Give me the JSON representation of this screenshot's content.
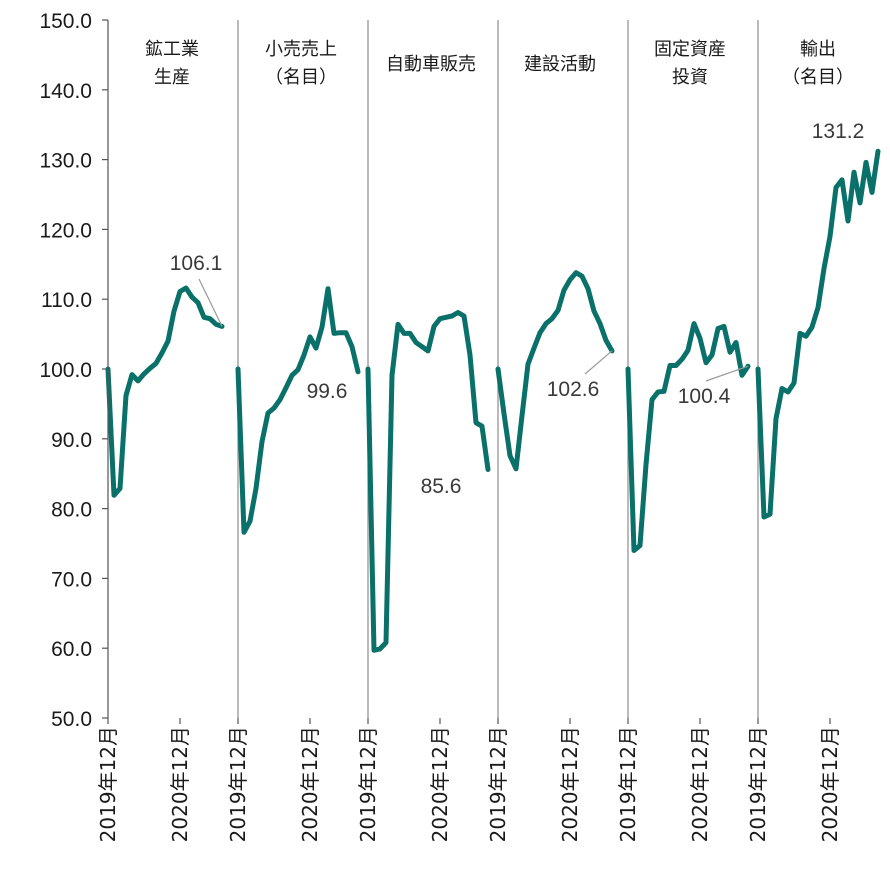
{
  "chart_data": {
    "type": "line",
    "ylim": [
      50,
      150
    ],
    "y_ticks": [
      "150.0",
      "140.0",
      "130.0",
      "120.0",
      "110.0",
      "100.0",
      "90.0",
      "80.0",
      "70.0",
      "60.0",
      "50.0"
    ],
    "x_tick_labels": [
      "2019年12月",
      "2020年12月"
    ],
    "grid": false,
    "line_color": "#0a706a",
    "panels": [
      {
        "title": [
          "鉱工業",
          "生産"
        ],
        "end_label": "106.1",
        "values": [
          100.0,
          81.9,
          82.9,
          96.2,
          99.2,
          98.3,
          99.3,
          100.1,
          100.8,
          102.3,
          104.0,
          108.3,
          111.1,
          111.6,
          110.3,
          109.5,
          107.4,
          107.2,
          106.4,
          106.1
        ]
      },
      {
        "title": [
          "小売売上",
          "（名目）"
        ],
        "end_label": "99.6",
        "values": [
          100.0,
          76.6,
          78.2,
          82.9,
          89.6,
          93.7,
          94.4,
          95.6,
          97.3,
          99.1,
          99.9,
          102.0,
          104.6,
          103.0,
          106.0,
          111.5,
          105.1,
          105.2,
          105.2,
          103.2,
          99.6
        ]
      },
      {
        "title": [
          "自動車販売"
        ],
        "end_label": "85.6",
        "values": [
          100.0,
          59.7,
          59.9,
          60.8,
          99.1,
          106.4,
          105.1,
          105.1,
          103.8,
          103.2,
          102.6,
          106.1,
          107.2,
          107.4,
          107.6,
          108.1,
          107.6,
          102.0,
          92.3,
          91.8,
          85.6
        ]
      },
      {
        "title": [
          "建設活動"
        ],
        "end_label": "102.6",
        "values": [
          100.0,
          93.6,
          87.6,
          85.7,
          93.3,
          100.7,
          103.0,
          105.2,
          106.5,
          107.2,
          108.4,
          111.3,
          112.8,
          113.8,
          113.3,
          111.5,
          108.3,
          106.5,
          104.1,
          102.6
        ]
      },
      {
        "title": [
          "固定資産",
          "投資"
        ],
        "end_label": "100.4",
        "values": [
          100.0,
          74.0,
          74.7,
          86.3,
          95.6,
          96.7,
          96.8,
          100.5,
          100.5,
          101.4,
          102.7,
          106.5,
          104.4,
          100.9,
          102.0,
          105.8,
          106.1,
          102.4,
          103.8,
          99.1,
          100.4
        ]
      },
      {
        "title": [
          "輸出",
          "（名目）"
        ],
        "end_label": "131.2",
        "values": [
          100.0,
          78.8,
          79.2,
          92.9,
          97.2,
          96.7,
          98.0,
          105.1,
          104.7,
          106.0,
          108.8,
          114.4,
          119.0,
          126.0,
          127.1,
          121.2,
          128.2,
          123.8,
          129.6,
          125.3,
          131.2
        ]
      }
    ]
  }
}
